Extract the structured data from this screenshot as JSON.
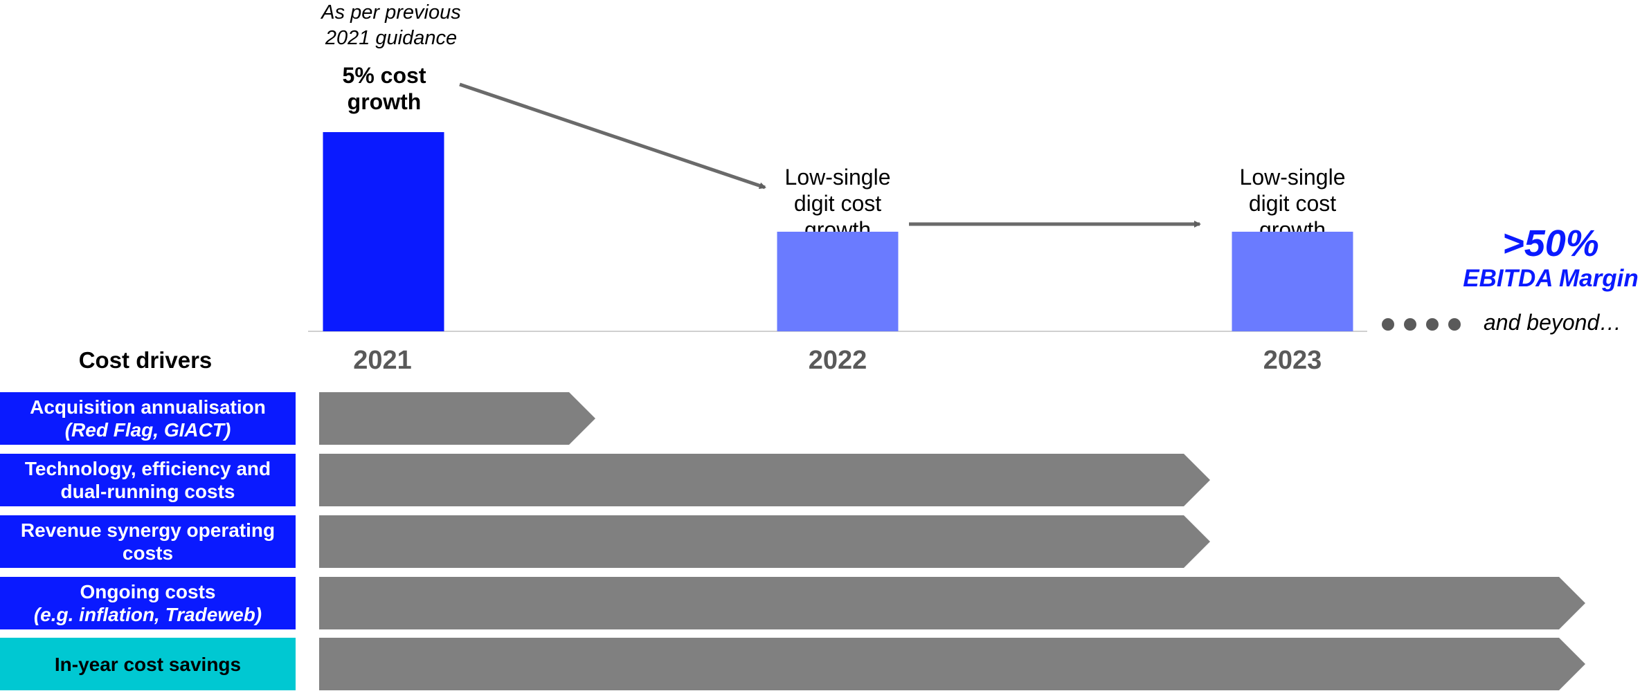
{
  "colors": {
    "bar_2021": "#0a1aff",
    "bar_light": "#6a7bff",
    "driver_blue": "#0a1aff",
    "driver_teal": "#00c8d2",
    "arrow_gray": "#808080",
    "year_gray": "#595959",
    "margin_blue": "#0a1aff"
  },
  "guidance_note": {
    "line1": "As per previous",
    "line2": "2021 guidance"
  },
  "chart_data": {
    "type": "bar",
    "categories": [
      "2021",
      "2022",
      "2023"
    ],
    "values": [
      5,
      2.5,
      2.5
    ],
    "value_labels": [
      [
        "5% cost",
        "growth"
      ],
      [
        "Low-single",
        "digit cost",
        "growth"
      ],
      [
        "Low-single",
        "digit cost",
        "growth"
      ]
    ],
    "title": "",
    "xlabel": "",
    "ylabel": "",
    "ylim": [
      0,
      5
    ],
    "grid": false
  },
  "outlook": {
    "margin_value": ">50%",
    "margin_label": "EBITDA Margin",
    "beyond": "and beyond…"
  },
  "drivers_header": "Cost drivers",
  "drivers": [
    {
      "line1": "Acquisition annualisation",
      "line2": "(Red Flag, GIACT)",
      "line2_italic": true,
      "color": "blue",
      "ends": "2021"
    },
    {
      "line1": "Technology, efficiency and",
      "line2": "dual-running costs",
      "line2_italic": false,
      "color": "blue",
      "ends": "2023"
    },
    {
      "line1": "Revenue synergy operating",
      "line2": "costs",
      "line2_italic": false,
      "color": "blue",
      "ends": "2023"
    },
    {
      "line1": "Ongoing costs",
      "line2": "(e.g. inflation, Tradeweb)",
      "line2_italic": true,
      "color": "blue",
      "ends": "beyond"
    },
    {
      "line1": "In-year cost savings",
      "line2": "",
      "line2_italic": false,
      "color": "teal",
      "ends": "beyond"
    }
  ]
}
